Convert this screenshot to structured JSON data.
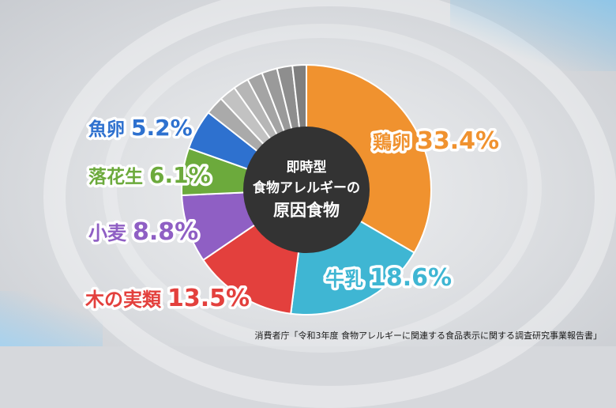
{
  "colors": {
    "鶏卵": "#f0922f",
    "牛乳": "#3fb6d3",
    "木の実類": "#e3403d",
    "小麦": "#8f5fc4",
    "落花生": "#6caa3c",
    "魚卵": "#2e71cf",
    "other": [
      "#aaaaaa",
      "#c2c2c2",
      "#b6b6b6",
      "#a4a4a4",
      "#9a9a9a",
      "#8e8e8e",
      "#7f7f7f"
    ],
    "center": "#333333"
  },
  "chart_data": {
    "type": "pie",
    "title_lines": [
      "即時型",
      "食物アレルギーの",
      "原因食物"
    ],
    "categories": [
      "鶏卵",
      "牛乳",
      "木の実類",
      "小麦",
      "落花生",
      "魚卵"
    ],
    "values": [
      33.4,
      18.6,
      13.5,
      8.8,
      6.1,
      5.2
    ],
    "value_labels": [
      "33.4%",
      "18.6%",
      "13.5%",
      "8.8%",
      "6.1%",
      "5.2%"
    ],
    "other_segments": [
      2.4,
      2.2,
      2.0,
      2.0,
      2.0,
      2.0,
      1.8
    ],
    "start": "12 o'clock, clockwise",
    "legend": "none (labels beside slices)"
  },
  "source": "消費者庁「令和3年度 食物アレルギーに関連する食品表示に関する調査研究事業報告書」"
}
